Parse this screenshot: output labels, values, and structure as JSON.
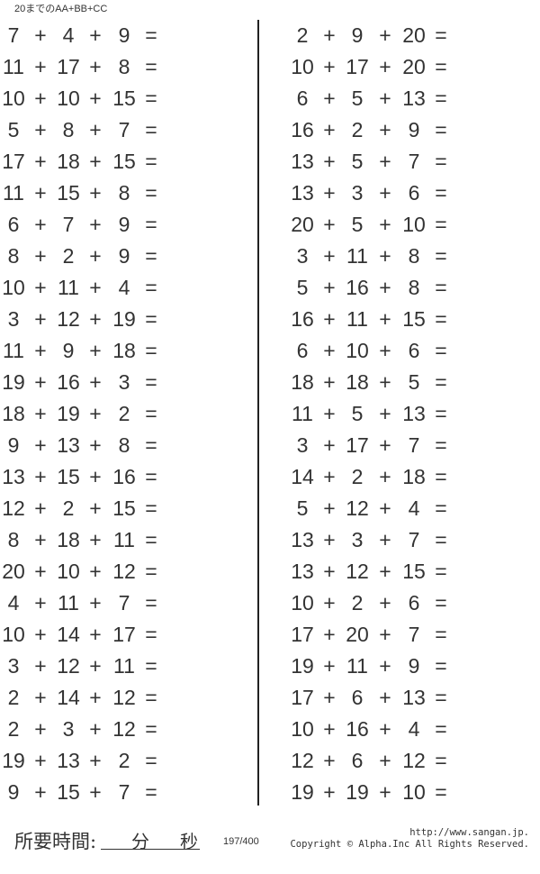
{
  "header": {
    "title": "20までのAA+BB+CC"
  },
  "problems": {
    "plus": "+",
    "equals": "=",
    "left": [
      [
        7,
        4,
        9
      ],
      [
        11,
        17,
        8
      ],
      [
        10,
        10,
        15
      ],
      [
        5,
        8,
        7
      ],
      [
        17,
        18,
        15
      ],
      [
        11,
        15,
        8
      ],
      [
        6,
        7,
        9
      ],
      [
        8,
        2,
        9
      ],
      [
        10,
        11,
        4
      ],
      [
        3,
        12,
        19
      ],
      [
        11,
        9,
        18
      ],
      [
        19,
        16,
        3
      ],
      [
        18,
        19,
        2
      ],
      [
        9,
        13,
        8
      ],
      [
        13,
        15,
        16
      ],
      [
        12,
        2,
        15
      ],
      [
        8,
        18,
        11
      ],
      [
        20,
        10,
        12
      ],
      [
        4,
        11,
        7
      ],
      [
        10,
        14,
        17
      ],
      [
        3,
        12,
        11
      ],
      [
        2,
        14,
        12
      ],
      [
        2,
        3,
        12
      ],
      [
        19,
        13,
        2
      ],
      [
        9,
        15,
        7
      ]
    ],
    "right": [
      [
        2,
        9,
        20
      ],
      [
        10,
        17,
        20
      ],
      [
        6,
        5,
        13
      ],
      [
        16,
        2,
        9
      ],
      [
        13,
        5,
        7
      ],
      [
        13,
        3,
        6
      ],
      [
        20,
        5,
        10
      ],
      [
        3,
        11,
        8
      ],
      [
        5,
        16,
        8
      ],
      [
        16,
        11,
        15
      ],
      [
        6,
        10,
        6
      ],
      [
        18,
        18,
        5
      ],
      [
        11,
        5,
        13
      ],
      [
        3,
        17,
        7
      ],
      [
        14,
        2,
        18
      ],
      [
        5,
        12,
        4
      ],
      [
        13,
        3,
        7
      ],
      [
        13,
        12,
        15
      ],
      [
        10,
        2,
        6
      ],
      [
        17,
        20,
        7
      ],
      [
        19,
        11,
        9
      ],
      [
        17,
        6,
        13
      ],
      [
        10,
        16,
        4
      ],
      [
        12,
        6,
        12
      ],
      [
        19,
        19,
        10
      ]
    ]
  },
  "footer": {
    "time_label": "所要時間:",
    "minutes_label": "分",
    "seconds_label": "秒",
    "page_number": "197/400",
    "url": "http://www.sangan.jp.",
    "copyright": "Copyright © Alpha.Inc All Rights Reserved."
  }
}
